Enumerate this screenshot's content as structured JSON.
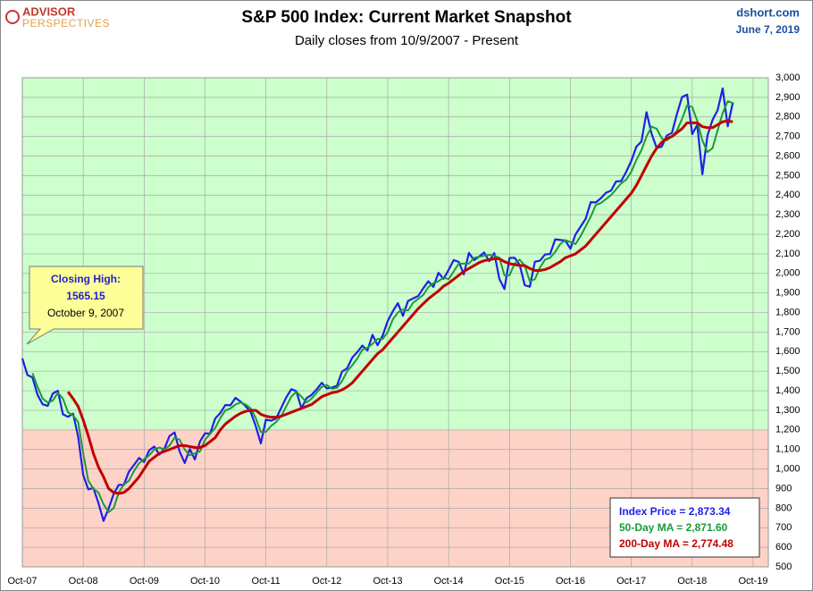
{
  "chart_data": {
    "type": "line",
    "title": "S&P 500 Index: Current Market Snapshot",
    "subtitle": "Daily closes from 10/9/2007 - Present",
    "logo": [
      "ADVISOR",
      "PERSPECTIVES"
    ],
    "source": "dshort.com",
    "date": "June 7, 2019",
    "callout": [
      "Closing High:",
      "1565.15",
      "October 9, 2007"
    ],
    "summary": [
      "Index Price =  2,873.34",
      "50-Day MA = 2,871.60",
      "200-Day MA = 2,774.48"
    ],
    "bands": [
      {
        "from": 500,
        "to": 1200,
        "color": "#fdd3c7"
      },
      {
        "from": 1200,
        "to": 3000,
        "color": "#ccffcc"
      }
    ],
    "grid": true,
    "x": [
      "2007-10",
      "2007-11",
      "2007-12",
      "2008-01",
      "2008-02",
      "2008-03",
      "2008-04",
      "2008-05",
      "2008-06",
      "2008-07",
      "2008-08",
      "2008-09",
      "2008-10",
      "2008-11",
      "2008-12",
      "2009-01",
      "2009-02",
      "2009-03",
      "2009-04",
      "2009-05",
      "2009-06",
      "2009-07",
      "2009-08",
      "2009-09",
      "2009-10",
      "2009-11",
      "2009-12",
      "2010-01",
      "2010-02",
      "2010-03",
      "2010-04",
      "2010-05",
      "2010-06",
      "2010-07",
      "2010-08",
      "2010-09",
      "2010-10",
      "2010-11",
      "2010-12",
      "2011-01",
      "2011-02",
      "2011-03",
      "2011-04",
      "2011-05",
      "2011-06",
      "2011-07",
      "2011-08",
      "2011-09",
      "2011-10",
      "2011-11",
      "2011-12",
      "2012-01",
      "2012-02",
      "2012-03",
      "2012-04",
      "2012-05",
      "2012-06",
      "2012-07",
      "2012-08",
      "2012-09",
      "2012-10",
      "2012-11",
      "2012-12",
      "2013-01",
      "2013-02",
      "2013-03",
      "2013-04",
      "2013-05",
      "2013-06",
      "2013-07",
      "2013-08",
      "2013-09",
      "2013-10",
      "2013-11",
      "2013-12",
      "2014-01",
      "2014-02",
      "2014-03",
      "2014-04",
      "2014-05",
      "2014-06",
      "2014-07",
      "2014-08",
      "2014-09",
      "2014-10",
      "2014-11",
      "2014-12",
      "2015-01",
      "2015-02",
      "2015-03",
      "2015-04",
      "2015-05",
      "2015-06",
      "2015-07",
      "2015-08",
      "2015-09",
      "2015-10",
      "2015-11",
      "2015-12",
      "2016-01",
      "2016-02",
      "2016-03",
      "2016-04",
      "2016-05",
      "2016-06",
      "2016-07",
      "2016-08",
      "2016-09",
      "2016-10",
      "2016-11",
      "2016-12",
      "2017-01",
      "2017-02",
      "2017-03",
      "2017-04",
      "2017-05",
      "2017-06",
      "2017-07",
      "2017-08",
      "2017-09",
      "2017-10",
      "2017-11",
      "2017-12",
      "2018-01",
      "2018-02",
      "2018-03",
      "2018-04",
      "2018-05",
      "2018-06",
      "2018-07",
      "2018-08",
      "2018-09",
      "2018-10",
      "2018-11",
      "2018-12",
      "2019-01",
      "2019-02",
      "2019-03",
      "2019-04",
      "2019-05",
      "2019-06"
    ],
    "series": [
      {
        "name": "Index Price",
        "color": "#1f1fe8",
        "width": 2.2,
        "values": [
          1565.15,
          1481,
          1468,
          1379,
          1331,
          1323,
          1386,
          1400,
          1280,
          1267,
          1283,
          1166,
          969,
          896,
          903,
          826,
          735,
          798,
          873,
          919,
          919,
          987,
          1021,
          1057,
          1036,
          1096,
          1115,
          1074,
          1104,
          1169,
          1187,
          1089,
          1031,
          1102,
          1049,
          1141,
          1183,
          1181,
          1258,
          1286,
          1327,
          1326,
          1364,
          1345,
          1321,
          1292,
          1219,
          1131,
          1253,
          1247,
          1258,
          1312,
          1366,
          1408,
          1398,
          1310,
          1362,
          1379,
          1407,
          1441,
          1412,
          1416,
          1426,
          1498,
          1515,
          1569,
          1598,
          1631,
          1606,
          1686,
          1633,
          1682,
          1757,
          1806,
          1848,
          1783,
          1859,
          1872,
          1884,
          1924,
          1960,
          1931,
          2003,
          1972,
          2018,
          2068,
          2059,
          1995,
          2105,
          2068,
          2086,
          2107,
          2063,
          2104,
          1972,
          1920,
          2079,
          2080,
          2044,
          1940,
          1932,
          2060,
          2065,
          2097,
          2099,
          2174,
          2171,
          2168,
          2126,
          2199,
          2239,
          2279,
          2364,
          2363,
          2384,
          2412,
          2423,
          2470,
          2472,
          2519,
          2575,
          2648,
          2674,
          2824,
          2714,
          2641,
          2648,
          2705,
          2718,
          2816,
          2902,
          2914,
          2712,
          2760,
          2507,
          2704,
          2784,
          2834,
          2946,
          2752,
          2873.34
        ]
      },
      {
        "name": "50-Day MA",
        "color": "#1a9a3a",
        "width": 2,
        "values": [
          null,
          null,
          1490,
          1420,
          1360,
          1340,
          1350,
          1390,
          1360,
          1290,
          1275,
          1240,
          1080,
          940,
          900,
          880,
          820,
          780,
          800,
          880,
          920,
          940,
          990,
          1030,
          1050,
          1070,
          1100,
          1110,
          1100,
          1120,
          1160,
          1150,
          1100,
          1070,
          1080,
          1090,
          1150,
          1180,
          1210,
          1260,
          1300,
          1310,
          1330,
          1340,
          1330,
          1310,
          1260,
          1190,
          1190,
          1220,
          1240,
          1270,
          1320,
          1370,
          1395,
          1370,
          1340,
          1360,
          1390,
          1420,
          1430,
          1410,
          1415,
          1450,
          1500,
          1530,
          1565,
          1610,
          1620,
          1640,
          1665,
          1665,
          1700,
          1765,
          1800,
          1815,
          1810,
          1850,
          1870,
          1890,
          1930,
          1950,
          1960,
          1980,
          1970,
          2010,
          2050,
          2050,
          2050,
          2080,
          2085,
          2090,
          2095,
          2090,
          2080,
          1990,
          1990,
          2050,
          2070,
          2040,
          1960,
          1970,
          2030,
          2070,
          2080,
          2110,
          2150,
          2170,
          2160,
          2150,
          2190,
          2240,
          2290,
          2350,
          2360,
          2380,
          2400,
          2430,
          2460,
          2480,
          2520,
          2580,
          2630,
          2700,
          2750,
          2740,
          2690,
          2680,
          2700,
          2730,
          2790,
          2860,
          2850,
          2780,
          2680,
          2620,
          2640,
          2730,
          2820,
          2880,
          2871.6
        ]
      },
      {
        "name": "200-Day MA",
        "color": "#c00000",
        "width": 3,
        "values": [
          null,
          null,
          null,
          null,
          null,
          null,
          null,
          null,
          null,
          1395,
          1360,
          1320,
          1250,
          1170,
          1080,
          1010,
          960,
          900,
          880,
          875,
          880,
          900,
          930,
          960,
          1000,
          1040,
          1060,
          1080,
          1090,
          1100,
          1110,
          1120,
          1120,
          1115,
          1110,
          1110,
          1120,
          1140,
          1160,
          1200,
          1230,
          1250,
          1270,
          1285,
          1295,
          1300,
          1300,
          1280,
          1270,
          1265,
          1265,
          1270,
          1280,
          1290,
          1300,
          1310,
          1320,
          1330,
          1350,
          1370,
          1380,
          1390,
          1395,
          1405,
          1420,
          1440,
          1470,
          1500,
          1530,
          1560,
          1590,
          1610,
          1640,
          1670,
          1700,
          1730,
          1760,
          1790,
          1820,
          1845,
          1870,
          1890,
          1910,
          1935,
          1950,
          1970,
          1990,
          2010,
          2025,
          2040,
          2055,
          2065,
          2070,
          2075,
          2075,
          2060,
          2050,
          2045,
          2040,
          2040,
          2025,
          2015,
          2015,
          2020,
          2030,
          2045,
          2060,
          2080,
          2090,
          2100,
          2120,
          2140,
          2170,
          2200,
          2230,
          2260,
          2290,
          2320,
          2350,
          2380,
          2410,
          2450,
          2500,
          2550,
          2600,
          2640,
          2670,
          2690,
          2700,
          2720,
          2740,
          2770,
          2770,
          2770,
          2750,
          2745,
          2745,
          2760,
          2775,
          2780,
          2774.48
        ]
      }
    ],
    "xlim": [
      "2007-10",
      "2020-01"
    ],
    "xticks": [
      {
        "value": "2007-10",
        "label": "Oct-07"
      },
      {
        "value": "2008-10",
        "label": "Oct-08"
      },
      {
        "value": "2009-10",
        "label": "Oct-09"
      },
      {
        "value": "2010-10",
        "label": "Oct-10"
      },
      {
        "value": "2011-10",
        "label": "Oct-11"
      },
      {
        "value": "2012-10",
        "label": "Oct-12"
      },
      {
        "value": "2013-10",
        "label": "Oct-13"
      },
      {
        "value": "2014-10",
        "label": "Oct-14"
      },
      {
        "value": "2015-10",
        "label": "Oct-15"
      },
      {
        "value": "2016-10",
        "label": "Oct-16"
      },
      {
        "value": "2017-10",
        "label": "Oct-17"
      },
      {
        "value": "2018-10",
        "label": "Oct-18"
      },
      {
        "value": "2019-10",
        "label": "Oct-19"
      }
    ],
    "ylim": [
      500,
      3000
    ],
    "yticks": [
      500,
      600,
      700,
      800,
      900,
      {
        "value": 1000,
        "label": "1,000"
      },
      {
        "value": 1100,
        "label": "1,100"
      },
      {
        "value": 1200,
        "label": "1,200"
      },
      {
        "value": 1300,
        "label": "1,300"
      },
      {
        "value": 1400,
        "label": "1,400"
      },
      {
        "value": 1500,
        "label": "1,500"
      },
      {
        "value": 1600,
        "label": "1,600"
      },
      {
        "value": 1700,
        "label": "1,700"
      },
      {
        "value": 1800,
        "label": "1,800"
      },
      {
        "value": 1900,
        "label": "1,900"
      },
      {
        "value": 2000,
        "label": "2,000"
      },
      {
        "value": 2100,
        "label": "2,100"
      },
      {
        "value": 2200,
        "label": "2,200"
      },
      {
        "value": 2300,
        "label": "2,300"
      },
      {
        "value": 2400,
        "label": "2,400"
      },
      {
        "value": 2500,
        "label": "2,500"
      },
      {
        "value": 2600,
        "label": "2,600"
      },
      {
        "value": 2700,
        "label": "2,700"
      },
      {
        "value": 2800,
        "label": "2,800"
      },
      {
        "value": 2900,
        "label": "2,900"
      },
      {
        "value": 3000,
        "label": "3,000"
      }
    ]
  }
}
